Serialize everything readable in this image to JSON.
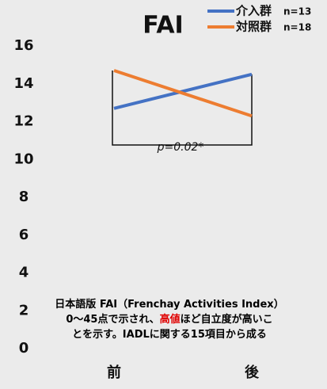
{
  "chart_data": {
    "type": "line",
    "title": "FAI",
    "categories": [
      "前",
      "後"
    ],
    "series": [
      {
        "name": "介入群",
        "n_label": "n=13",
        "color": "#4472c4",
        "values": [
          12.7,
          14.5
        ]
      },
      {
        "name": "対照群",
        "n_label": "n=18",
        "color": "#ed7d31",
        "values": [
          14.7,
          12.3
        ]
      }
    ],
    "ylim": [
      0,
      16
    ],
    "yticks": [
      0,
      2,
      4,
      6,
      8,
      10,
      12,
      14,
      16
    ],
    "grid": false,
    "legend": "top-right",
    "annotation": "p=0.02*",
    "note": [
      [
        {
          "text": "日本語版 FAI（Frenchay Activities Index）",
          "color": "#000000"
        }
      ],
      [
        {
          "text": "0～45点で示され、",
          "color": "#000000"
        },
        {
          "text": "高値",
          "color": "#e00000"
        },
        {
          "text": "ほど自立度が高いこ",
          "color": "#000000"
        }
      ],
      [
        {
          "text": "とを示す。IADLに関する15項目から成る",
          "color": "#000000"
        }
      ]
    ]
  }
}
